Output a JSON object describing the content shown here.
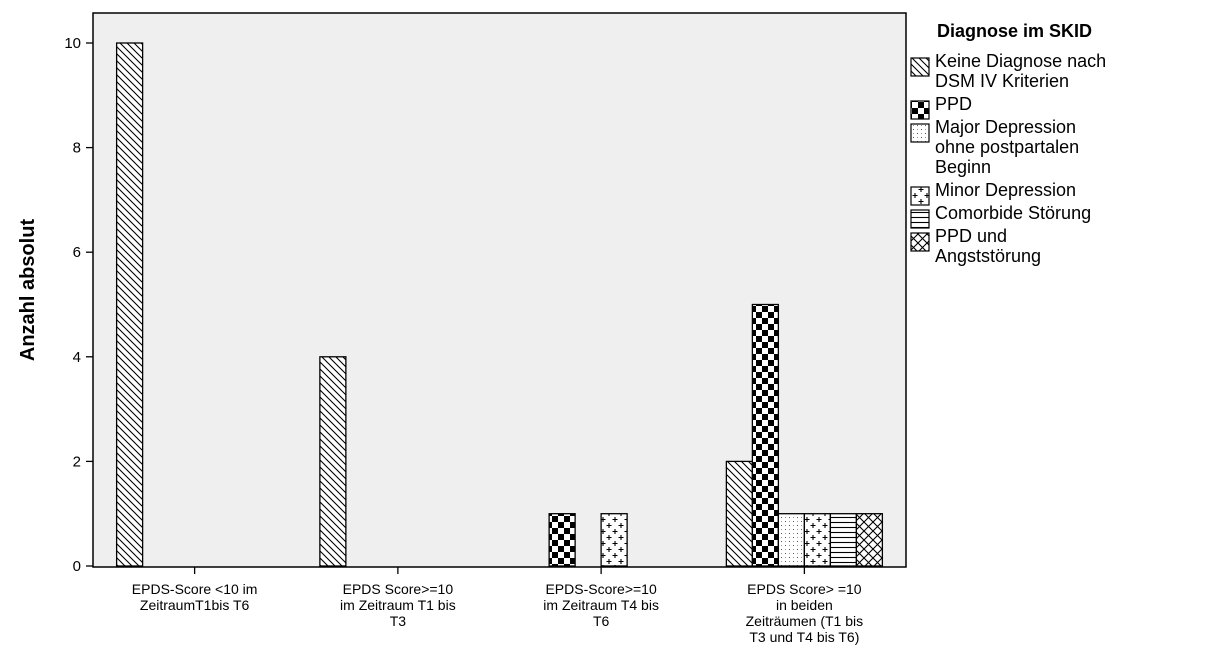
{
  "chart_data": {
    "type": "bar",
    "ylabel": "Anzahl absolut",
    "ylim": [
      0,
      10
    ],
    "yticks": [
      0,
      2,
      4,
      6,
      8,
      10
    ],
    "grid": false,
    "legend_position": "right",
    "legend_title": "Diagnose im SKID",
    "categories": [
      [
        "EPDS-Score <10 im",
        "ZeitraumT1bis T6"
      ],
      [
        "EPDS Score>=10",
        "im Zeitraum T1 bis",
        "T3"
      ],
      [
        "EPDS-Score>=10",
        "im Zeitraum T4 bis",
        "T6"
      ],
      [
        "EPDS Score> =10",
        "in beiden",
        "Zeiträumen (T1 bis",
        "T3 und T4 bis T6)"
      ]
    ],
    "series": [
      {
        "name": [
          "Keine Diagnose nach",
          "DSM IV Kriterien"
        ],
        "pattern": "diagonal",
        "values": [
          10,
          4,
          0,
          2
        ]
      },
      {
        "name": [
          "PPD"
        ],
        "pattern": "checker",
        "values": [
          0,
          0,
          1,
          5
        ]
      },
      {
        "name": [
          "Major Depression",
          "ohne postpartalen",
          "Beginn"
        ],
        "pattern": "dotted",
        "values": [
          0,
          0,
          0,
          1
        ]
      },
      {
        "name": [
          "Minor Depression"
        ],
        "pattern": "cross",
        "values": [
          0,
          0,
          1,
          1
        ]
      },
      {
        "name": [
          "Comorbide Störung"
        ],
        "pattern": "horizontal",
        "values": [
          0,
          0,
          0,
          1
        ]
      },
      {
        "name": [
          "PPD und",
          "Angststörung"
        ],
        "pattern": "crosshatch",
        "values": [
          0,
          0,
          0,
          1
        ]
      }
    ],
    "colors": {
      "plot_background": "#efefef",
      "bar_fill": "#ffffff",
      "stroke": "#000000"
    }
  }
}
